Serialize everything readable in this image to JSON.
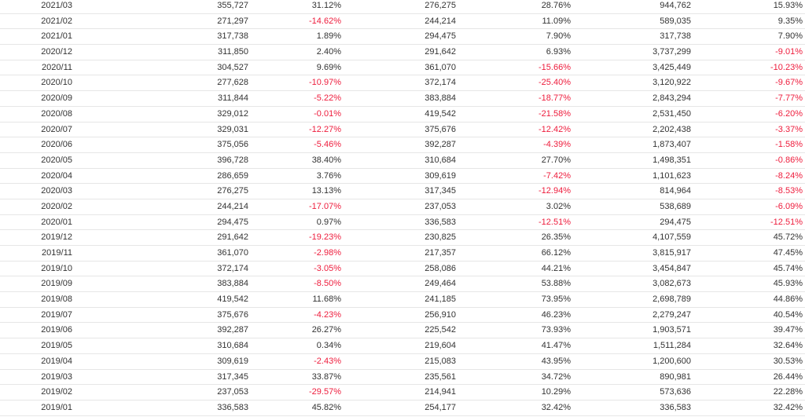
{
  "colors": {
    "text": "#333333",
    "negative": "#ee1c3c",
    "row_border": "#e6e6e6"
  },
  "rows": [
    [
      "2021/03",
      "355,727",
      "31.12%",
      "276,275",
      "28.76%",
      "944,762",
      "15.93%"
    ],
    [
      "2021/02",
      "271,297",
      "-14.62%",
      "244,214",
      "11.09%",
      "589,035",
      "9.35%"
    ],
    [
      "2021/01",
      "317,738",
      "1.89%",
      "294,475",
      "7.90%",
      "317,738",
      "7.90%"
    ],
    [
      "2020/12",
      "311,850",
      "2.40%",
      "291,642",
      "6.93%",
      "3,737,299",
      "-9.01%"
    ],
    [
      "2020/11",
      "304,527",
      "9.69%",
      "361,070",
      "-15.66%",
      "3,425,449",
      "-10.23%"
    ],
    [
      "2020/10",
      "277,628",
      "-10.97%",
      "372,174",
      "-25.40%",
      "3,120,922",
      "-9.67%"
    ],
    [
      "2020/09",
      "311,844",
      "-5.22%",
      "383,884",
      "-18.77%",
      "2,843,294",
      "-7.77%"
    ],
    [
      "2020/08",
      "329,012",
      "-0.01%",
      "419,542",
      "-21.58%",
      "2,531,450",
      "-6.20%"
    ],
    [
      "2020/07",
      "329,031",
      "-12.27%",
      "375,676",
      "-12.42%",
      "2,202,438",
      "-3.37%"
    ],
    [
      "2020/06",
      "375,056",
      "-5.46%",
      "392,287",
      "-4.39%",
      "1,873,407",
      "-1.58%"
    ],
    [
      "2020/05",
      "396,728",
      "38.40%",
      "310,684",
      "27.70%",
      "1,498,351",
      "-0.86%"
    ],
    [
      "2020/04",
      "286,659",
      "3.76%",
      "309,619",
      "-7.42%",
      "1,101,623",
      "-8.24%"
    ],
    [
      "2020/03",
      "276,275",
      "13.13%",
      "317,345",
      "-12.94%",
      "814,964",
      "-8.53%"
    ],
    [
      "2020/02",
      "244,214",
      "-17.07%",
      "237,053",
      "3.02%",
      "538,689",
      "-6.09%"
    ],
    [
      "2020/01",
      "294,475",
      "0.97%",
      "336,583",
      "-12.51%",
      "294,475",
      "-12.51%"
    ],
    [
      "2019/12",
      "291,642",
      "-19.23%",
      "230,825",
      "26.35%",
      "4,107,559",
      "45.72%"
    ],
    [
      "2019/11",
      "361,070",
      "-2.98%",
      "217,357",
      "66.12%",
      "3,815,917",
      "47.45%"
    ],
    [
      "2019/10",
      "372,174",
      "-3.05%",
      "258,086",
      "44.21%",
      "3,454,847",
      "45.74%"
    ],
    [
      "2019/09",
      "383,884",
      "-8.50%",
      "249,464",
      "53.88%",
      "3,082,673",
      "45.93%"
    ],
    [
      "2019/08",
      "419,542",
      "11.68%",
      "241,185",
      "73.95%",
      "2,698,789",
      "44.86%"
    ],
    [
      "2019/07",
      "375,676",
      "-4.23%",
      "256,910",
      "46.23%",
      "2,279,247",
      "40.54%"
    ],
    [
      "2019/06",
      "392,287",
      "26.27%",
      "225,542",
      "73.93%",
      "1,903,571",
      "39.47%"
    ],
    [
      "2019/05",
      "310,684",
      "0.34%",
      "219,604",
      "41.47%",
      "1,511,284",
      "32.64%"
    ],
    [
      "2019/04",
      "309,619",
      "-2.43%",
      "215,083",
      "43.95%",
      "1,200,600",
      "30.53%"
    ],
    [
      "2019/03",
      "317,345",
      "33.87%",
      "235,561",
      "34.72%",
      "890,981",
      "26.44%"
    ],
    [
      "2019/02",
      "237,053",
      "-29.57%",
      "214,941",
      "10.29%",
      "573,636",
      "22.28%"
    ],
    [
      "2019/01",
      "336,583",
      "45.82%",
      "254,177",
      "32.42%",
      "336,583",
      "32.42%"
    ]
  ]
}
